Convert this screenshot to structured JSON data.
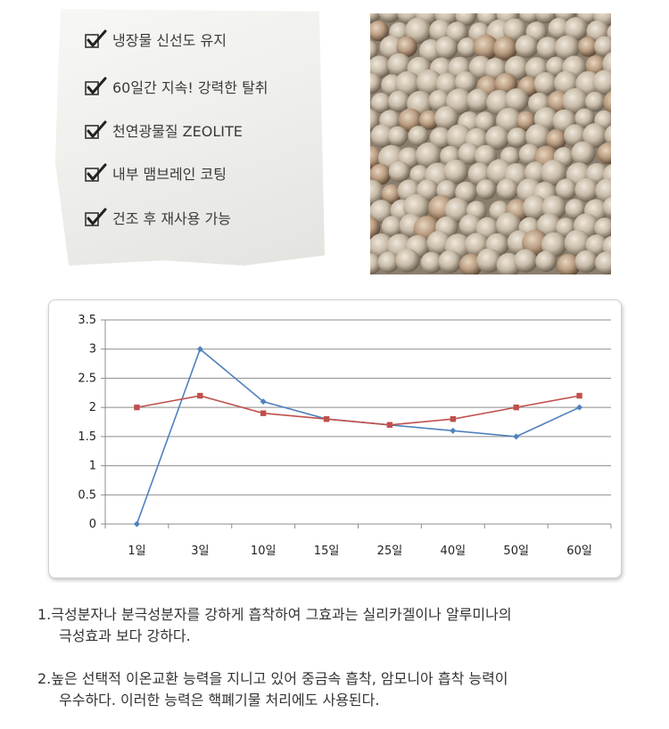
{
  "features": [
    "냉장물 신선도 유지",
    "60일간 지속! 강력한 탈취",
    "천연광물질 ZEOLITE",
    "내부 맴브레인 코팅",
    "건조 후 재사용 가능"
  ],
  "sachet_watermark": "",
  "chart_data": {
    "type": "line",
    "categories": [
      "1일",
      "3일",
      "10일",
      "15일",
      "25일",
      "40일",
      "50일",
      "60일"
    ],
    "ylim": [
      0,
      3.5
    ],
    "yticks": [
      "0",
      "0.5",
      "1",
      "1.5",
      "2",
      "2.5",
      "3",
      "3.5"
    ],
    "grid": true,
    "legend": "none",
    "series": [
      {
        "color": "#4f81bd",
        "values": [
          0,
          3,
          2.1,
          1.8,
          1.7,
          1.6,
          1.5,
          2
        ]
      },
      {
        "color": "#c0504d",
        "values": [
          2,
          2.2,
          1.9,
          1.8,
          1.7,
          1.8,
          2,
          2.2
        ]
      }
    ]
  },
  "notes": [
    {
      "line1": "1.극성분자나 분극성분자를 강하게 흡착하여 그효과는 실리카겔이나 알루미나의",
      "line2": "극성효과 보다 강하다."
    },
    {
      "line1": "2.높은 선택적 이온교환 능력을 지니고 있어 중금속 흡착, 암모니아 흡착 능력이",
      "line2": "우수하다. 이러한 능력은 핵폐기물 처리에도 사용된다."
    }
  ]
}
